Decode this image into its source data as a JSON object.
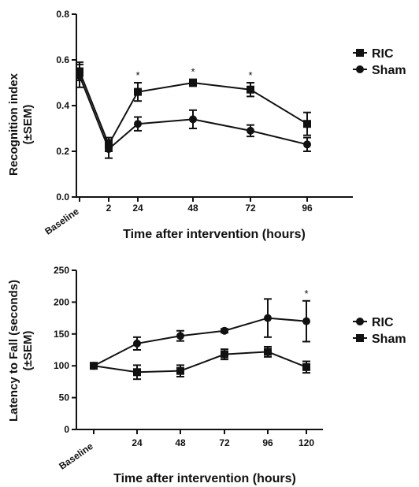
{
  "chart_data": [
    {
      "type": "line",
      "x": [
        "Baseline",
        "2",
        "24",
        "48",
        "72",
        "96"
      ],
      "xlabel": "Time after intervention (hours)",
      "ylabel": [
        "Recognition index",
        "(±SEM)"
      ],
      "ylim": [
        0,
        0.8
      ],
      "yticks": [
        "0.0",
        "0.2",
        "0.4",
        "0.6",
        "0.8"
      ],
      "grid": false,
      "legend_position": "right",
      "series": [
        {
          "name": "RIC",
          "marker": "square",
          "values": [
            0.55,
            0.23,
            0.46,
            0.5,
            0.47,
            0.32
          ],
          "errors": [
            0.04,
            0.03,
            0.04,
            0.015,
            0.03,
            0.05
          ]
        },
        {
          "name": "Sham",
          "marker": "circle",
          "values": [
            0.53,
            0.21,
            0.32,
            0.34,
            0.29,
            0.23
          ],
          "errors": [
            0.05,
            0.04,
            0.03,
            0.04,
            0.025,
            0.03
          ]
        }
      ],
      "annotations": [
        {
          "text": "*",
          "x": "24"
        },
        {
          "text": "*",
          "x": "48"
        },
        {
          "text": "*",
          "x": "72"
        }
      ]
    },
    {
      "type": "line",
      "x": [
        "Baseline",
        "24",
        "48",
        "72",
        "96",
        "120"
      ],
      "xlabel": "Time after intervention (hours)",
      "ylabel": [
        "Latency to Fall (seconds)",
        "(±SEM)"
      ],
      "ylim": [
        0,
        250
      ],
      "yticks": [
        "0",
        "50",
        "100",
        "150",
        "200",
        "250"
      ],
      "grid": false,
      "legend_position": "right",
      "series": [
        {
          "name": "RIC",
          "marker": "circle",
          "values": [
            100,
            135,
            147,
            155,
            175,
            170
          ],
          "errors": [
            0,
            10,
            8,
            3,
            30,
            32
          ]
        },
        {
          "name": "Sham",
          "marker": "square",
          "values": [
            100,
            90,
            92,
            118,
            122,
            98
          ],
          "errors": [
            0,
            11,
            9,
            8,
            8,
            9
          ]
        }
      ],
      "annotations": [
        {
          "text": "*",
          "x": "120"
        }
      ]
    }
  ]
}
